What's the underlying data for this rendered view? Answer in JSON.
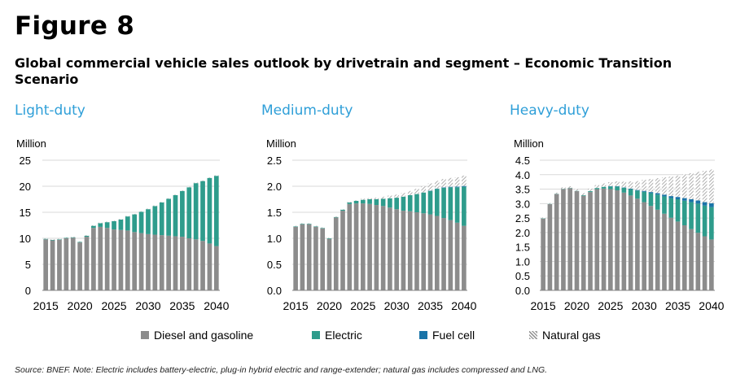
{
  "figure_label": "Figure 8",
  "title": "Global commercial vehicle sales outlook by drivetrain and segment –  Economic Transition Scenario",
  "source": "Source: BNEF. Note: Electric includes battery-electric, plug-in hybrid electric and range-extender; natural gas includes compressed and LNG.",
  "colors": {
    "diesel": "#8c8c8c",
    "electric": "#2e9c8c",
    "fuel_cell": "#1a74a8",
    "natural_gas": "#b4b4b4",
    "panel_title": "#2f9fd8"
  },
  "legend": [
    {
      "key": "diesel",
      "label": "Diesel and gasoline"
    },
    {
      "key": "electric",
      "label": "Electric"
    },
    {
      "key": "fuel_cell",
      "label": "Fuel cell"
    },
    {
      "key": "natural_gas",
      "label": "Natural gas"
    }
  ],
  "chart_data": [
    {
      "type": "bar",
      "stacked": true,
      "title": "Light-duty",
      "ylabel": "Million",
      "ylim": [
        0,
        25
      ],
      "yticks": [
        0,
        5,
        10,
        15,
        20,
        25
      ],
      "ytick_labels": [
        "0",
        "5",
        "10",
        "15",
        "20",
        "25"
      ],
      "xticks": [
        "2015",
        "2020",
        "2025",
        "2030",
        "2035",
        "2040"
      ],
      "categories": [
        2015,
        2016,
        2017,
        2018,
        2019,
        2020,
        2021,
        2022,
        2023,
        2024,
        2025,
        2026,
        2027,
        2028,
        2029,
        2030,
        2031,
        2032,
        2033,
        2034,
        2035,
        2036,
        2037,
        2038,
        2039,
        2040
      ],
      "series": [
        {
          "name": "Diesel and gasoline",
          "key": "diesel",
          "values": [
            9.8,
            9.6,
            9.7,
            10.0,
            10.1,
            9.2,
            10.3,
            12.0,
            12.2,
            12.0,
            11.7,
            11.6,
            11.5,
            11.2,
            11.0,
            10.8,
            10.7,
            10.6,
            10.5,
            10.4,
            10.3,
            10.0,
            9.8,
            9.5,
            9.0,
            8.5
          ]
        },
        {
          "name": "Electric",
          "key": "electric",
          "values": [
            0.1,
            0.1,
            0.1,
            0.1,
            0.1,
            0.1,
            0.2,
            0.4,
            0.7,
            1.1,
            1.6,
            2.0,
            2.7,
            3.4,
            4.1,
            4.8,
            5.5,
            6.3,
            7.1,
            7.9,
            8.8,
            9.8,
            10.8,
            11.5,
            12.6,
            13.5
          ]
        },
        {
          "name": "Fuel cell",
          "key": "fuel_cell",
          "values": [
            0,
            0,
            0,
            0,
            0,
            0,
            0,
            0,
            0,
            0,
            0,
            0,
            0,
            0,
            0,
            0,
            0,
            0,
            0,
            0,
            0,
            0,
            0,
            0,
            0,
            0
          ]
        },
        {
          "name": "Natural gas",
          "key": "natural_gas",
          "values": [
            0.1,
            0.1,
            0.1,
            0.1,
            0.1,
            0.1,
            0.1,
            0.1,
            0.1,
            0.1,
            0.1,
            0.1,
            0.1,
            0.1,
            0.1,
            0.1,
            0.1,
            0.1,
            0.1,
            0.1,
            0.1,
            0.1,
            0.1,
            0.1,
            0.1,
            0.1
          ]
        }
      ]
    },
    {
      "type": "bar",
      "stacked": true,
      "title": "Medium-duty",
      "ylabel": "Million",
      "ylim": [
        0,
        2.5
      ],
      "yticks": [
        0,
        0.5,
        1.0,
        1.5,
        2.0,
        2.5
      ],
      "ytick_labels": [
        "0.0",
        "0.5",
        "1.0",
        "1.5",
        "2.0",
        "2.5"
      ],
      "xticks": [
        "2015",
        "2020",
        "2025",
        "2030",
        "2035",
        "2040"
      ],
      "categories": [
        2015,
        2016,
        2017,
        2018,
        2019,
        2020,
        2021,
        2022,
        2023,
        2024,
        2025,
        2026,
        2027,
        2028,
        2029,
        2030,
        2031,
        2032,
        2033,
        2034,
        2035,
        2036,
        2037,
        2038,
        2039,
        2040
      ],
      "series": [
        {
          "name": "Diesel and gasoline",
          "key": "diesel",
          "values": [
            1.22,
            1.27,
            1.27,
            1.22,
            1.19,
            0.99,
            1.4,
            1.53,
            1.66,
            1.67,
            1.67,
            1.66,
            1.64,
            1.62,
            1.59,
            1.56,
            1.53,
            1.52,
            1.5,
            1.48,
            1.46,
            1.43,
            1.39,
            1.35,
            1.3,
            1.24
          ]
        },
        {
          "name": "Electric",
          "key": "electric",
          "values": [
            0.01,
            0.01,
            0.01,
            0.01,
            0.01,
            0.01,
            0.01,
            0.02,
            0.03,
            0.05,
            0.07,
            0.09,
            0.11,
            0.14,
            0.18,
            0.22,
            0.27,
            0.31,
            0.35,
            0.4,
            0.45,
            0.52,
            0.58,
            0.63,
            0.68,
            0.75
          ]
        },
        {
          "name": "Fuel cell",
          "key": "fuel_cell",
          "values": [
            0,
            0,
            0,
            0,
            0,
            0,
            0,
            0,
            0,
            0,
            0,
            0,
            0,
            0,
            0,
            0,
            0,
            0,
            0,
            0,
            0.005,
            0.006,
            0.008,
            0.01,
            0.012,
            0.015
          ]
        },
        {
          "name": "Natural gas",
          "key": "natural_gas",
          "values": [
            0.01,
            0.01,
            0.01,
            0.01,
            0.01,
            0.01,
            0.01,
            0.01,
            0.01,
            0.01,
            0.02,
            0.02,
            0.03,
            0.04,
            0.05,
            0.06,
            0.07,
            0.08,
            0.1,
            0.12,
            0.14,
            0.15,
            0.16,
            0.17,
            0.18,
            0.2
          ]
        }
      ]
    },
    {
      "type": "bar",
      "stacked": true,
      "title": "Heavy-duty",
      "ylabel": "Million",
      "ylim": [
        0,
        4.5
      ],
      "yticks": [
        0,
        0.5,
        1.0,
        1.5,
        2.0,
        2.5,
        3.0,
        3.5,
        4.0,
        4.5
      ],
      "ytick_labels": [
        "0.0",
        "0.5",
        "1.0",
        "1.5",
        "2.0",
        "2.5",
        "3.0",
        "3.5",
        "4.0",
        "4.5"
      ],
      "xticks": [
        "2015",
        "2020",
        "2025",
        "2030",
        "2035",
        "2040"
      ],
      "categories": [
        2015,
        2016,
        2017,
        2018,
        2019,
        2020,
        2021,
        2022,
        2023,
        2024,
        2025,
        2026,
        2027,
        2028,
        2029,
        2030,
        2031,
        2032,
        2033,
        2034,
        2035,
        2036,
        2037,
        2038,
        2039,
        2040
      ],
      "series": [
        {
          "name": "Diesel and gasoline",
          "key": "diesel",
          "values": [
            2.48,
            2.98,
            3.33,
            3.5,
            3.53,
            3.43,
            3.27,
            3.4,
            3.5,
            3.52,
            3.5,
            3.46,
            3.38,
            3.28,
            3.17,
            3.05,
            2.92,
            2.79,
            2.65,
            2.51,
            2.38,
            2.25,
            2.12,
            1.99,
            1.87,
            1.76
          ]
        },
        {
          "name": "Electric",
          "key": "electric",
          "values": [
            0.01,
            0.01,
            0.01,
            0.01,
            0.01,
            0.01,
            0.02,
            0.03,
            0.04,
            0.06,
            0.09,
            0.13,
            0.17,
            0.22,
            0.28,
            0.36,
            0.44,
            0.52,
            0.6,
            0.68,
            0.77,
            0.85,
            0.93,
            1.01,
            1.06,
            1.12
          ]
        },
        {
          "name": "Fuel cell",
          "key": "fuel_cell",
          "values": [
            0,
            0,
            0,
            0,
            0,
            0,
            0,
            0,
            0,
            0,
            0.01,
            0.01,
            0.01,
            0.02,
            0.02,
            0.03,
            0.04,
            0.05,
            0.06,
            0.07,
            0.08,
            0.09,
            0.1,
            0.11,
            0.12,
            0.13
          ]
        },
        {
          "name": "Natural gas",
          "key": "natural_gas",
          "values": [
            0.03,
            0.03,
            0.04,
            0.05,
            0.06,
            0.06,
            0.07,
            0.09,
            0.1,
            0.12,
            0.14,
            0.17,
            0.2,
            0.25,
            0.31,
            0.38,
            0.45,
            0.52,
            0.6,
            0.67,
            0.74,
            0.82,
            0.9,
            0.99,
            1.08,
            1.17
          ]
        }
      ]
    }
  ]
}
